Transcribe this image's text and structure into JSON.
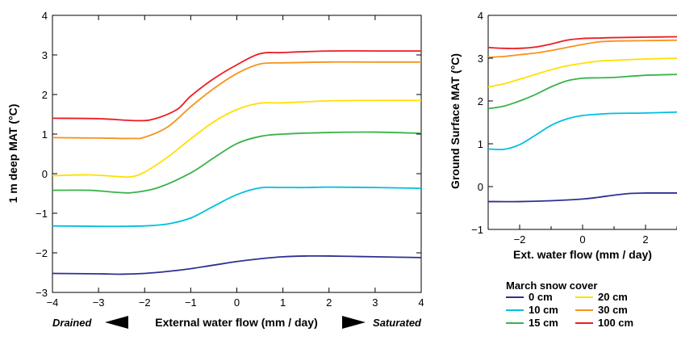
{
  "chart_data": [
    {
      "type": "line",
      "title": "",
      "xlabel": "External water flow (mm / day)",
      "ylabel": "1 m deep MAT (°C)",
      "xlim": [
        -4,
        4
      ],
      "ylim": [
        -3,
        4
      ],
      "x_ticks": [
        -4,
        -3,
        -2,
        -1,
        0,
        1,
        2,
        3,
        4
      ],
      "y_ticks": [
        -3,
        -2,
        -1,
        0,
        1,
        2,
        3,
        4
      ],
      "x_tick_labels": [
        "−4",
        "−3",
        "−2",
        "−1",
        "0",
        "1",
        "2",
        "3",
        "4"
      ],
      "y_tick_labels": [
        "−3",
        "−2",
        "−1",
        "0",
        "1",
        "2",
        "3",
        "4"
      ],
      "annotations": {
        "left": "Drained",
        "right": "Saturated"
      },
      "grid": false,
      "series": [
        {
          "name": "0 cm",
          "color": "#2e3192",
          "points": [
            [
              -4,
              -2.52
            ],
            [
              -3,
              -2.53
            ],
            [
              -2.5,
              -2.54
            ],
            [
              -2,
              -2.52
            ],
            [
              -1.5,
              -2.47
            ],
            [
              -1,
              -2.4
            ],
            [
              -0.5,
              -2.31
            ],
            [
              0,
              -2.22
            ],
            [
              0.5,
              -2.15
            ],
            [
              1,
              -2.1
            ],
            [
              1.5,
              -2.08
            ],
            [
              2,
              -2.08
            ],
            [
              2.5,
              -2.09
            ],
            [
              3,
              -2.1
            ],
            [
              4,
              -2.12
            ]
          ]
        },
        {
          "name": "10 cm",
          "color": "#00c0df",
          "points": [
            [
              -4,
              -1.32
            ],
            [
              -3,
              -1.33
            ],
            [
              -2.5,
              -1.33
            ],
            [
              -2,
              -1.32
            ],
            [
              -1.5,
              -1.27
            ],
            [
              -1,
              -1.12
            ],
            [
              -0.5,
              -0.82
            ],
            [
              0,
              -0.53
            ],
            [
              0.5,
              -0.36
            ],
            [
              1,
              -0.35
            ],
            [
              1.5,
              -0.35
            ],
            [
              2,
              -0.34
            ],
            [
              3,
              -0.35
            ],
            [
              4,
              -0.37
            ]
          ]
        },
        {
          "name": "15 cm",
          "color": "#3ab34a",
          "points": [
            [
              -4,
              -0.42
            ],
            [
              -3.2,
              -0.42
            ],
            [
              -2.5,
              -0.48
            ],
            [
              -2.2,
              -0.47
            ],
            [
              -1.7,
              -0.35
            ],
            [
              -1,
              0.02
            ],
            [
              -0.5,
              0.4
            ],
            [
              0,
              0.76
            ],
            [
              0.5,
              0.94
            ],
            [
              1,
              1.0
            ],
            [
              2,
              1.04
            ],
            [
              3,
              1.05
            ],
            [
              4,
              1.02
            ]
          ]
        },
        {
          "name": "20 cm",
          "color": "#ffe000",
          "points": [
            [
              -4,
              -0.05
            ],
            [
              -3.2,
              -0.03
            ],
            [
              -2.6,
              -0.07
            ],
            [
              -2.3,
              -0.08
            ],
            [
              -2,
              0.04
            ],
            [
              -1.5,
              0.42
            ],
            [
              -1,
              0.88
            ],
            [
              -0.5,
              1.31
            ],
            [
              0,
              1.62
            ],
            [
              0.5,
              1.78
            ],
            [
              1,
              1.79
            ],
            [
              2,
              1.84
            ],
            [
              3,
              1.85
            ],
            [
              4,
              1.85
            ]
          ]
        },
        {
          "name": "30 cm",
          "color": "#f7921e",
          "points": [
            [
              -4,
              0.91
            ],
            [
              -3,
              0.9
            ],
            [
              -2.3,
              0.89
            ],
            [
              -2,
              0.92
            ],
            [
              -1.5,
              1.18
            ],
            [
              -1,
              1.69
            ],
            [
              -0.5,
              2.15
            ],
            [
              0,
              2.53
            ],
            [
              0.5,
              2.77
            ],
            [
              1,
              2.8
            ],
            [
              2,
              2.82
            ],
            [
              3,
              2.82
            ],
            [
              4,
              2.82
            ]
          ]
        },
        {
          "name": "100 cm",
          "color": "#ed1c24",
          "points": [
            [
              -4,
              1.4
            ],
            [
              -3,
              1.39
            ],
            [
              -2.2,
              1.34
            ],
            [
              -1.8,
              1.38
            ],
            [
              -1.3,
              1.62
            ],
            [
              -1,
              1.96
            ],
            [
              -0.5,
              2.4
            ],
            [
              0,
              2.75
            ],
            [
              0.5,
              3.03
            ],
            [
              1,
              3.06
            ],
            [
              2,
              3.1
            ],
            [
              3,
              3.1
            ],
            [
              4,
              3.1
            ]
          ]
        }
      ]
    },
    {
      "type": "line",
      "title": "",
      "xlabel": "Ext. water flow (mm / day)",
      "ylabel": "Ground Surface MAT (°C)",
      "xlim": [
        -3,
        3
      ],
      "ylim": [
        -1,
        4
      ],
      "x_ticks": [
        -2,
        0,
        2
      ],
      "y_ticks": [
        -1,
        0,
        1,
        2,
        3,
        4
      ],
      "x_tick_labels": [
        "−2",
        "0",
        "2"
      ],
      "y_tick_labels": [
        "−1",
        "0",
        "1",
        "2",
        "3",
        "4"
      ],
      "grid": false,
      "series": [
        {
          "name": "0 cm",
          "color": "#2e3192",
          "points": [
            [
              -3,
              -0.35
            ],
            [
              -2,
              -0.35
            ],
            [
              -1,
              -0.33
            ],
            [
              0,
              -0.29
            ],
            [
              0.5,
              -0.25
            ],
            [
              1,
              -0.2
            ],
            [
              1.5,
              -0.16
            ],
            [
              2,
              -0.15
            ],
            [
              3,
              -0.15
            ]
          ]
        },
        {
          "name": "10 cm",
          "color": "#00c0df",
          "points": [
            [
              -3,
              0.88
            ],
            [
              -2.5,
              0.87
            ],
            [
              -2,
              0.98
            ],
            [
              -1.5,
              1.2
            ],
            [
              -1,
              1.43
            ],
            [
              -0.5,
              1.58
            ],
            [
              0,
              1.66
            ],
            [
              0.5,
              1.69
            ],
            [
              1,
              1.71
            ],
            [
              2,
              1.72
            ],
            [
              3,
              1.74
            ]
          ]
        },
        {
          "name": "15 cm",
          "color": "#3ab34a",
          "points": [
            [
              -3,
              1.82
            ],
            [
              -2.5,
              1.88
            ],
            [
              -2,
              2.0
            ],
            [
              -1.5,
              2.15
            ],
            [
              -1,
              2.33
            ],
            [
              -0.5,
              2.47
            ],
            [
              0,
              2.53
            ],
            [
              0.5,
              2.54
            ],
            [
              1,
              2.55
            ],
            [
              2,
              2.6
            ],
            [
              3,
              2.62
            ]
          ]
        },
        {
          "name": "20 cm",
          "color": "#ffe000",
          "points": [
            [
              -3,
              2.33
            ],
            [
              -2.5,
              2.4
            ],
            [
              -2,
              2.51
            ],
            [
              -1.5,
              2.62
            ],
            [
              -1,
              2.73
            ],
            [
              -0.5,
              2.82
            ],
            [
              0,
              2.88
            ],
            [
              0.5,
              2.93
            ],
            [
              1,
              2.95
            ],
            [
              2,
              2.98
            ],
            [
              3,
              3.0
            ]
          ]
        },
        {
          "name": "30 cm",
          "color": "#f7921e",
          "points": [
            [
              -3,
              3.02
            ],
            [
              -2.5,
              3.04
            ],
            [
              -2,
              3.08
            ],
            [
              -1.5,
              3.12
            ],
            [
              -1,
              3.18
            ],
            [
              -0.5,
              3.25
            ],
            [
              0,
              3.32
            ],
            [
              0.5,
              3.38
            ],
            [
              1,
              3.4
            ],
            [
              2,
              3.41
            ],
            [
              3,
              3.42
            ]
          ]
        },
        {
          "name": "100 cm",
          "color": "#ed1c24",
          "points": [
            [
              -3,
              3.25
            ],
            [
              -2.5,
              3.23
            ],
            [
              -2,
              3.23
            ],
            [
              -1.5,
              3.26
            ],
            [
              -1,
              3.33
            ],
            [
              -0.5,
              3.42
            ],
            [
              0,
              3.46
            ],
            [
              0.5,
              3.47
            ],
            [
              1,
              3.48
            ],
            [
              2,
              3.49
            ],
            [
              3,
              3.5
            ]
          ]
        }
      ]
    }
  ],
  "legend": {
    "title": "March snow cover",
    "entries": [
      {
        "label": "0 cm",
        "color": "#2e3192"
      },
      {
        "label": "20 cm",
        "color": "#ffe000"
      },
      {
        "label": "10 cm",
        "color": "#00c0df"
      },
      {
        "label": "30 cm",
        "color": "#f7921e"
      },
      {
        "label": "15 cm",
        "color": "#3ab34a"
      },
      {
        "label": "100 cm",
        "color": "#ed1c24"
      }
    ]
  }
}
